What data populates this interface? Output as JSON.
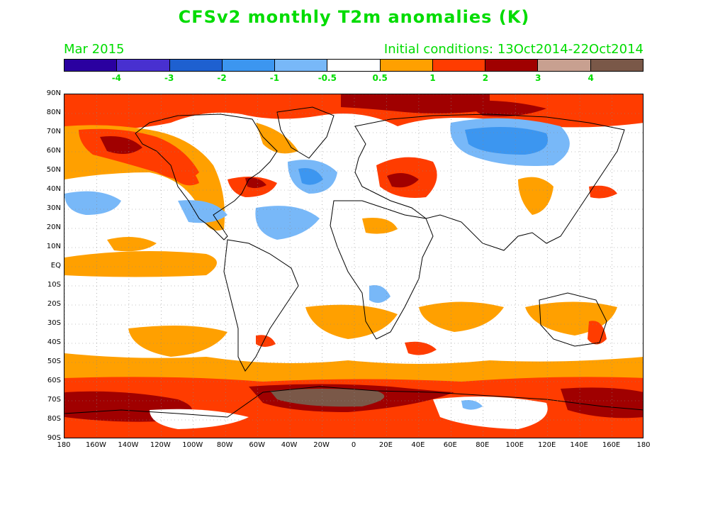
{
  "title": "CFSv2 monthly T2m anomalies (K)",
  "valid_month": "Mar 2015",
  "initial_conditions": "Initial conditions: 13Oct2014-22Oct2014",
  "colorbar": {
    "colors": [
      "#2a00a0",
      "#4830d0",
      "#1e60d0",
      "#3c96f0",
      "#78b8f8",
      "#ffffff",
      "#ffa000",
      "#ff3c00",
      "#a00000",
      "#c8a090",
      "#7a5848"
    ],
    "labels": [
      "-4",
      "-3",
      "-2",
      "-1",
      "-0.5",
      "0.5",
      "1",
      "2",
      "3",
      "4"
    ]
  },
  "map": {
    "lat_labels": [
      "90N",
      "80N",
      "70N",
      "60N",
      "50N",
      "40N",
      "30N",
      "20N",
      "10N",
      "EQ",
      "10S",
      "20S",
      "30S",
      "40S",
      "50S",
      "60S",
      "70S",
      "80S",
      "90S"
    ],
    "lon_labels": [
      "180",
      "160W",
      "140W",
      "120W",
      "100W",
      "80W",
      "60W",
      "40W",
      "20W",
      "0",
      "20E",
      "40E",
      "60E",
      "80E",
      "100E",
      "120E",
      "140E",
      "160E",
      "180"
    ]
  }
}
